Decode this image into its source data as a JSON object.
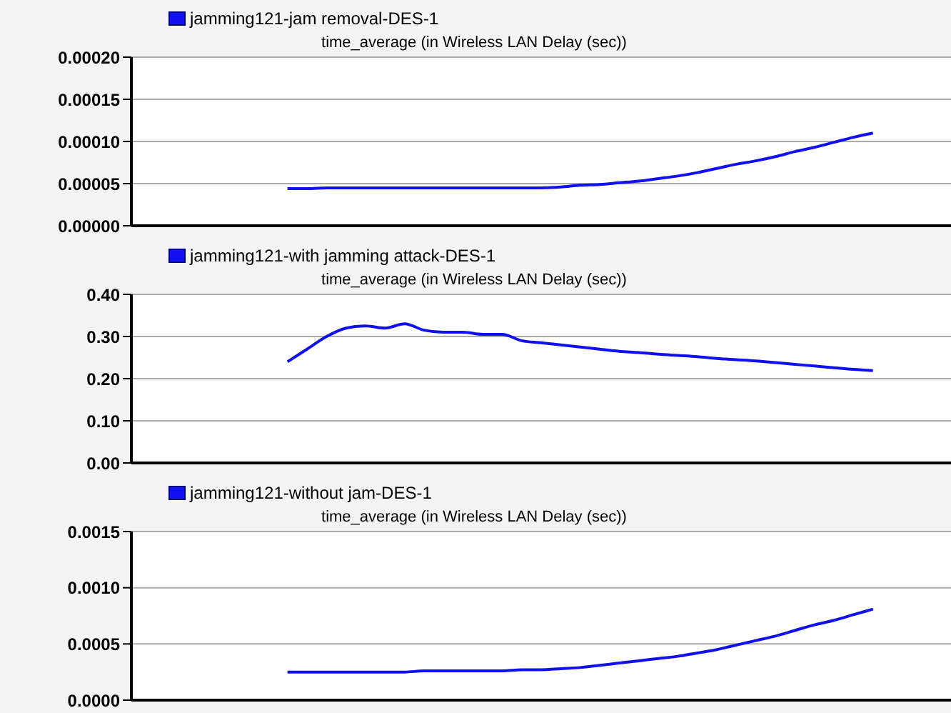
{
  "chart_data": [
    {
      "type": "line",
      "title": "time_average (in Wireless LAN Delay (sec))",
      "categories": [
        null,
        null,
        null,
        null,
        null,
        null,
        null,
        null,
        null,
        null,
        null,
        null,
        null,
        null,
        null,
        null,
        null,
        null,
        null,
        null,
        null,
        null,
        null,
        null,
        null,
        null,
        null,
        null,
        null,
        null,
        null,
        null,
        null,
        null,
        null,
        null,
        null,
        null,
        null,
        null,
        null,
        null,
        null
      ],
      "series": [
        {
          "name": "jamming121-jam removal-DES-1",
          "color": "#1010f0",
          "values": [
            null,
            null,
            null,
            null,
            null,
            null,
            null,
            null,
            4.4e-05,
            4.4e-05,
            4.5e-05,
            4.5e-05,
            4.5e-05,
            4.5e-05,
            4.5e-05,
            4.5e-05,
            4.5e-05,
            4.5e-05,
            4.5e-05,
            4.5e-05,
            4.5e-05,
            4.5e-05,
            4.6e-05,
            4.8e-05,
            4.9e-05,
            5.1e-05,
            5.3e-05,
            5.6e-05,
            5.9e-05,
            6.3e-05,
            6.8e-05,
            7.3e-05,
            7.7e-05,
            8.2e-05,
            8.8e-05,
            9.3e-05,
            9.9e-05,
            0.000105,
            0.00011,
            null,
            null,
            null,
            null
          ]
        }
      ],
      "ylim": [
        0,
        0.0002
      ],
      "yticks": [
        {
          "value": 0,
          "label": "0.00000"
        },
        {
          "value": 5e-05,
          "label": "0.00005"
        },
        {
          "value": 0.0001,
          "label": "0.00010"
        },
        {
          "value": 0.00015,
          "label": "0.00015"
        },
        {
          "value": 0.0002,
          "label": "0.00020"
        }
      ],
      "grid": "y",
      "legend": "top left",
      "tick_labels": "y",
      "marker": "none",
      "line_style": "solid"
    },
    {
      "type": "line",
      "title": "time_average (in Wireless LAN Delay (sec))",
      "categories": [
        null,
        null,
        null,
        null,
        null,
        null,
        null,
        null,
        null,
        null,
        null,
        null,
        null,
        null,
        null,
        null,
        null,
        null,
        null,
        null,
        null,
        null,
        null,
        null,
        null,
        null,
        null,
        null,
        null,
        null,
        null,
        null,
        null,
        null,
        null,
        null,
        null,
        null,
        null,
        null,
        null,
        null,
        null
      ],
      "series": [
        {
          "name": "jamming121-with jamming attack-DES-1",
          "color": "#1010f0",
          "values": [
            null,
            null,
            null,
            null,
            null,
            null,
            null,
            null,
            0.24,
            0.27,
            0.3,
            0.32,
            0.325,
            0.32,
            0.33,
            0.315,
            0.31,
            0.31,
            0.305,
            0.305,
            0.29,
            0.285,
            0.28,
            0.275,
            0.27,
            0.265,
            0.262,
            0.258,
            0.255,
            0.252,
            0.248,
            0.245,
            0.242,
            0.238,
            0.234,
            0.23,
            0.226,
            0.222,
            0.219,
            null,
            null,
            null,
            null
          ]
        }
      ],
      "ylim": [
        0,
        0.4
      ],
      "yticks": [
        {
          "value": 0,
          "label": "0.00"
        },
        {
          "value": 0.1,
          "label": "0.10"
        },
        {
          "value": 0.2,
          "label": "0.20"
        },
        {
          "value": 0.3,
          "label": "0.30"
        },
        {
          "value": 0.4,
          "label": "0.40"
        }
      ],
      "grid": "y",
      "legend": "top left",
      "tick_labels": "y",
      "marker": "none",
      "line_style": "solid"
    },
    {
      "type": "line",
      "title": "time_average (in Wireless LAN Delay (sec))",
      "categories": [
        null,
        null,
        null,
        null,
        null,
        null,
        null,
        null,
        null,
        null,
        null,
        null,
        null,
        null,
        null,
        null,
        null,
        null,
        null,
        null,
        null,
        null,
        null,
        null,
        null,
        null,
        null,
        null,
        null,
        null,
        null,
        null,
        null,
        null,
        null,
        null,
        null,
        null,
        null,
        null,
        null,
        null,
        null
      ],
      "series": [
        {
          "name": "jamming121-without jam-DES-1",
          "color": "#1010f0",
          "values": [
            null,
            null,
            null,
            null,
            null,
            null,
            null,
            null,
            0.00025,
            0.00025,
            0.00025,
            0.00025,
            0.00025,
            0.00025,
            0.00025,
            0.00026,
            0.00026,
            0.00026,
            0.00026,
            0.00026,
            0.00027,
            0.00027,
            0.00028,
            0.00029,
            0.00031,
            0.00033,
            0.00035,
            0.00037,
            0.00039,
            0.00042,
            0.00045,
            0.00049,
            0.00053,
            0.00057,
            0.00062,
            0.00067,
            0.00071,
            0.00076,
            0.00081,
            null,
            null,
            null,
            null
          ]
        }
      ],
      "ylim": [
        0,
        0.0015
      ],
      "yticks": [
        {
          "value": 0,
          "label": "0.0000"
        },
        {
          "value": 0.0005,
          "label": "0.0005"
        },
        {
          "value": 0.001,
          "label": "0.0010"
        },
        {
          "value": 0.0015,
          "label": "0.0015"
        }
      ],
      "grid": "y",
      "legend": "top left",
      "tick_labels": "y",
      "marker": "none",
      "line_style": "solid"
    }
  ]
}
